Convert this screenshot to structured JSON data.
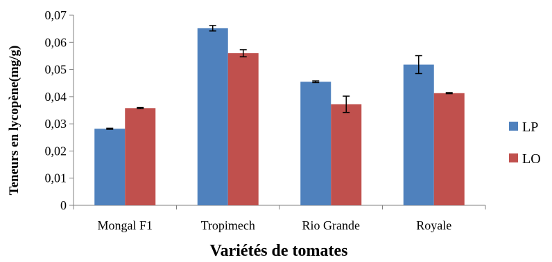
{
  "chart_data": {
    "type": "bar",
    "title": "",
    "xlabel": "Variétés de tomates",
    "ylabel": "Teneurs en lycopène(mg/g)",
    "categories": [
      "Mongal F1",
      "Tropimech",
      "Rio Grande",
      "Royale"
    ],
    "series": [
      {
        "name": "LP",
        "color": "#4f81bd",
        "values": [
          0.0282,
          0.0652,
          0.0455,
          0.0518
        ],
        "errors": [
          0.0002,
          0.001,
          0.0003,
          0.0033
        ]
      },
      {
        "name": "LO",
        "color": "#c0504d",
        "values": [
          0.0358,
          0.056,
          0.0372,
          0.0413
        ],
        "errors": [
          0.0002,
          0.0013,
          0.003,
          0.0002
        ]
      }
    ],
    "y_ticks": [
      "0",
      "0,01",
      "0,02",
      "0,03",
      "0,04",
      "0,05",
      "0,06",
      "0,07"
    ],
    "ylim": [
      0,
      0.07
    ],
    "grid": false,
    "legend_position": "right"
  }
}
